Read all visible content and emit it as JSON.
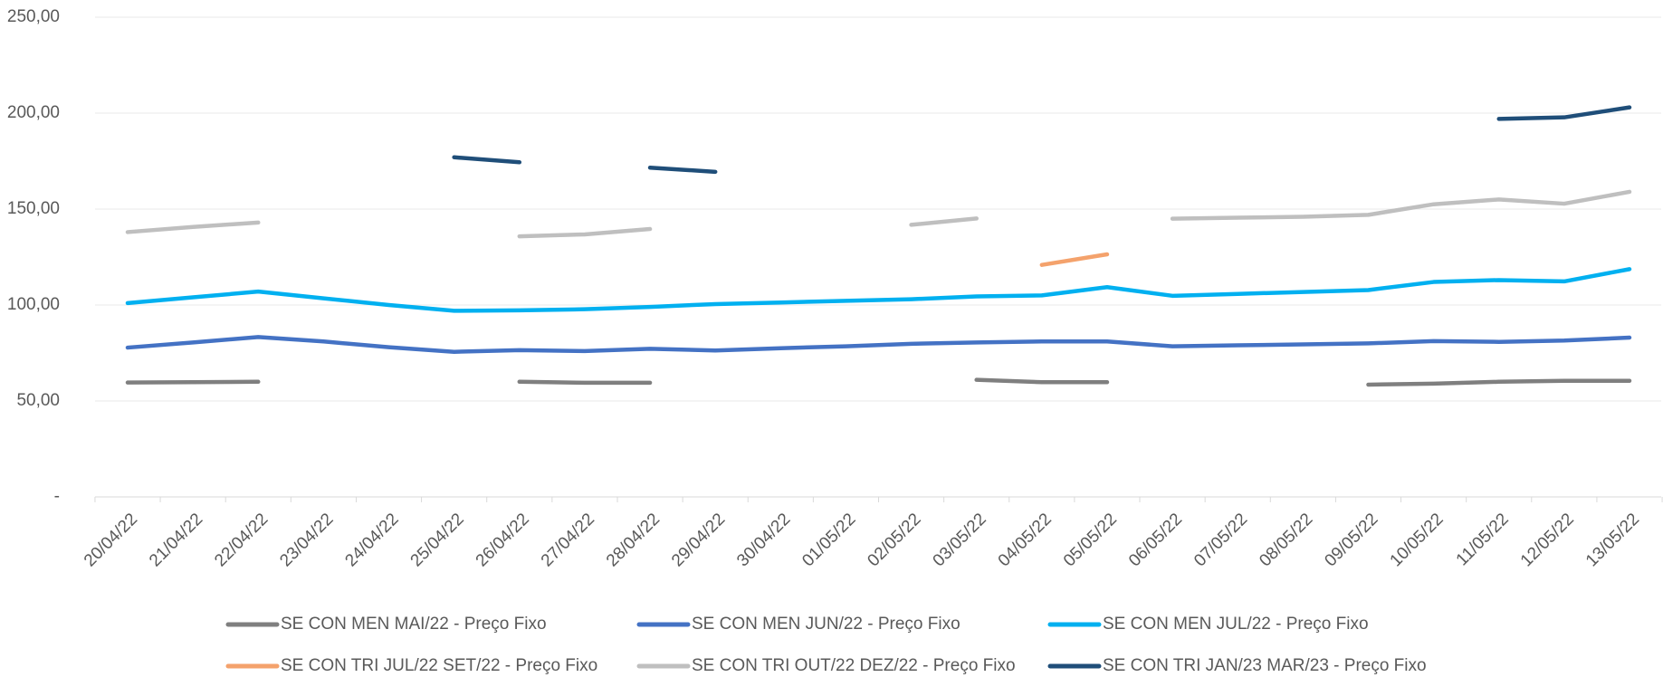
{
  "chart_data": {
    "type": "line",
    "categories": [
      "20/04/22",
      "21/04/22",
      "22/04/22",
      "23/04/22",
      "24/04/22",
      "25/04/22",
      "26/04/22",
      "27/04/22",
      "28/04/22",
      "29/04/22",
      "30/04/22",
      "01/05/22",
      "02/05/22",
      "03/05/22",
      "04/05/22",
      "05/05/22",
      "06/05/22",
      "07/05/22",
      "08/05/22",
      "09/05/22",
      "10/05/22",
      "11/05/22",
      "12/05/22",
      "13/05/22"
    ],
    "series": [
      {
        "name": "SE CON MEN MAI/22 - Preço Fixo",
        "color": "#7f7f7f",
        "values": [
          59.6,
          59.8,
          60,
          null,
          null,
          null,
          60,
          59.5,
          59.5,
          null,
          null,
          null,
          null,
          61,
          59.8,
          59.8,
          null,
          null,
          null,
          58.5,
          59,
          60,
          60.5,
          60.5
        ]
      },
      {
        "name": "SE CON MEN JUN/22 - Preço Fixo",
        "color": "#4472c4",
        "values": [
          77.8,
          80.5,
          83.3,
          81,
          78,
          75.6,
          76.5,
          76,
          77.2,
          76.3,
          77.5,
          78.5,
          79.8,
          80.5,
          81,
          81,
          78.5,
          79,
          79.5,
          80,
          81.2,
          80.8,
          81.5,
          83
        ]
      },
      {
        "name": "SE CON MEN JUL/22 - Preço Fixo",
        "color": "#00b0f0",
        "values": [
          101,
          104,
          107,
          103.5,
          100,
          97,
          97.2,
          97.8,
          99,
          100.5,
          101.3,
          102.2,
          103,
          104.5,
          105,
          109.3,
          104.8,
          105.8,
          106.8,
          107.8,
          112,
          113,
          112.3,
          118.7
        ]
      },
      {
        "name": "SE CON TRI JUL/22 SET/22 - Preço Fixo",
        "color": "#f4a26c",
        "values": [
          null,
          null,
          null,
          null,
          null,
          null,
          null,
          null,
          null,
          null,
          null,
          null,
          null,
          null,
          120.9,
          126.4,
          null,
          null,
          null,
          null,
          null,
          null,
          null,
          null
        ]
      },
      {
        "name": "SE CON TRI OUT/22 DEZ/22 - Preço Fixo",
        "color": "#bfbfbf",
        "values": [
          138,
          140.7,
          143,
          null,
          null,
          null,
          135.8,
          136.8,
          139.6,
          null,
          null,
          null,
          141.8,
          145.1,
          null,
          null,
          145,
          145.5,
          146,
          147,
          152.5,
          155,
          152.8,
          159
        ]
      },
      {
        "name": "SE CON TRI JAN/23 MAR/23 - Preço Fixo",
        "color": "#1f4e79",
        "values": [
          null,
          null,
          null,
          null,
          null,
          177,
          174.4,
          null,
          171.6,
          169.4,
          null,
          null,
          null,
          null,
          null,
          null,
          null,
          null,
          null,
          null,
          null,
          197,
          197.8,
          203
        ]
      }
    ],
    "ylim": [
      0,
      250
    ],
    "yticks": [
      {
        "value": 0,
        "label": "-"
      },
      {
        "value": 50,
        "label": "50,00"
      },
      {
        "value": 100,
        "label": "100,00"
      },
      {
        "value": 150,
        "label": "150,00"
      },
      {
        "value": 200,
        "label": "200,00"
      },
      {
        "value": 250,
        "label": "250,00"
      }
    ],
    "grid": true
  }
}
